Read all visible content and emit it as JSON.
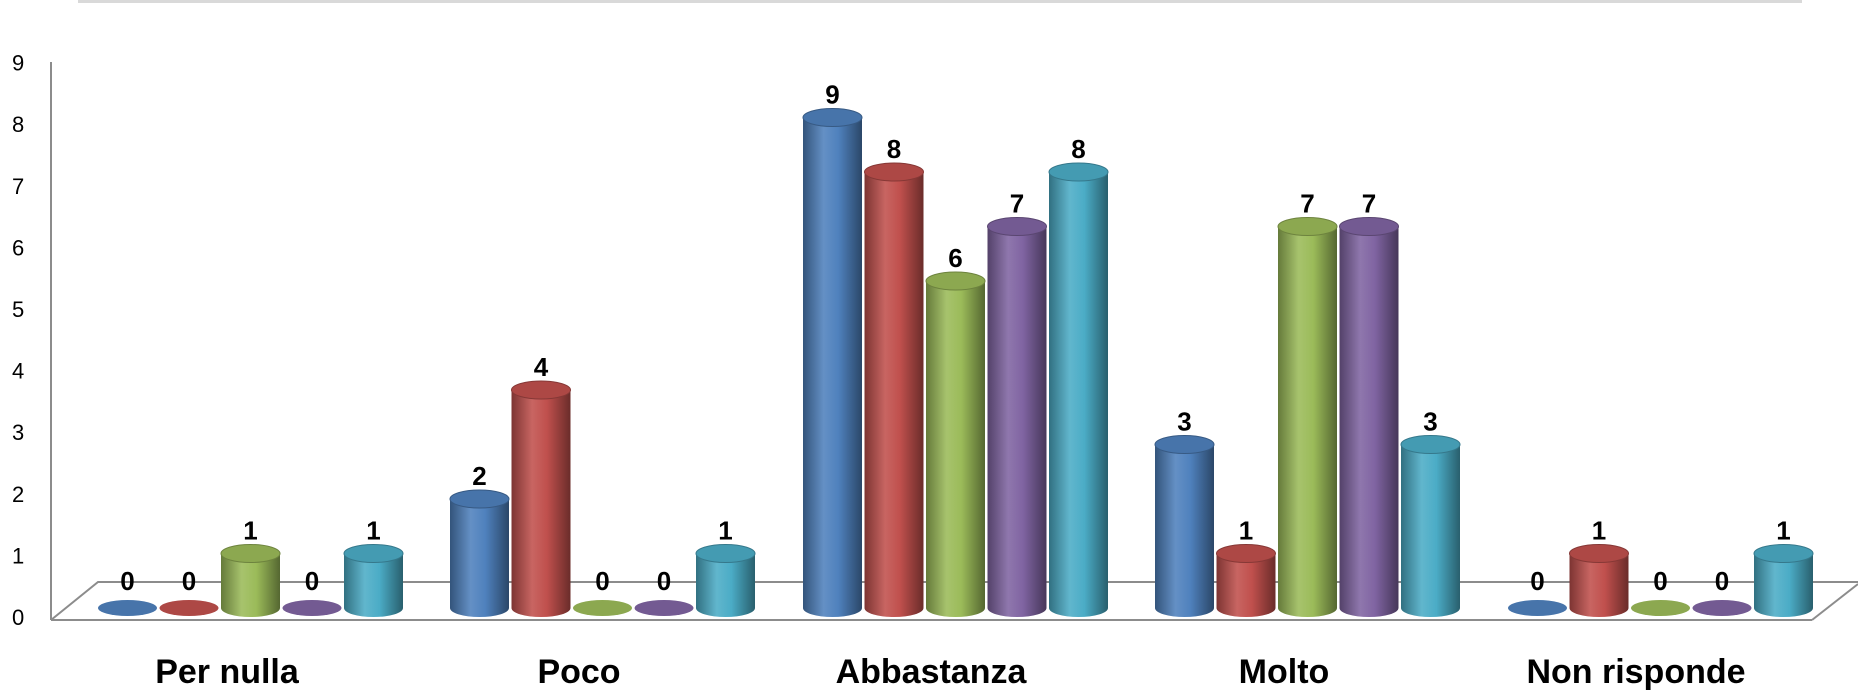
{
  "chart_data": {
    "type": "bar",
    "style": "3d-cylinder",
    "categories": [
      "Per nulla",
      "Poco",
      "Abbastanza",
      "Molto",
      "Non risponde"
    ],
    "series": [
      {
        "values": [
          0,
          2,
          9,
          3,
          0
        ],
        "color": "#4F81BD"
      },
      {
        "values": [
          0,
          4,
          8,
          1,
          1
        ],
        "color": "#C0504D"
      },
      {
        "values": [
          1,
          0,
          6,
          7,
          0
        ],
        "color": "#9BBB59"
      },
      {
        "values": [
          0,
          0,
          7,
          7,
          0
        ],
        "color": "#8064A2"
      },
      {
        "values": [
          1,
          1,
          8,
          3,
          1
        ],
        "color": "#4BACC6"
      }
    ],
    "y_ticks": [
      "0",
      "1",
      "2",
      "3",
      "4",
      "5",
      "6",
      "7",
      "8",
      "9"
    ],
    "ylim": [
      0,
      9
    ],
    "title": "",
    "xlabel": "",
    "ylabel": "",
    "grid": false,
    "legend": "none",
    "data_labels": true
  }
}
